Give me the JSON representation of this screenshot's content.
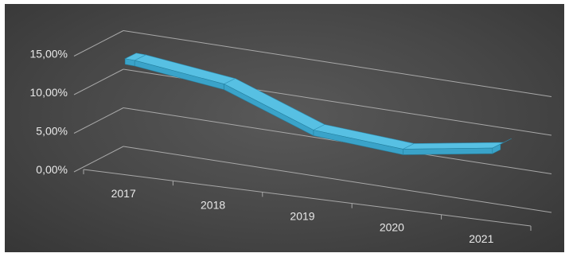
{
  "chart_data": {
    "type": "line",
    "style": "3d-ribbon",
    "categories": [
      "2017",
      "2018",
      "2019",
      "2020",
      "2021"
    ],
    "series": [
      {
        "values": [
          12.8,
          11.2,
          6.7,
          5.7,
          7.3
        ],
        "color": "#3aa3c9"
      }
    ],
    "y_ticks": [
      "0,00%",
      "5,00%",
      "10,00%",
      "15,00%"
    ],
    "ylim": [
      0,
      15
    ],
    "grid": true,
    "legend": "none",
    "title": "",
    "xlabel": "",
    "ylabel": ""
  }
}
